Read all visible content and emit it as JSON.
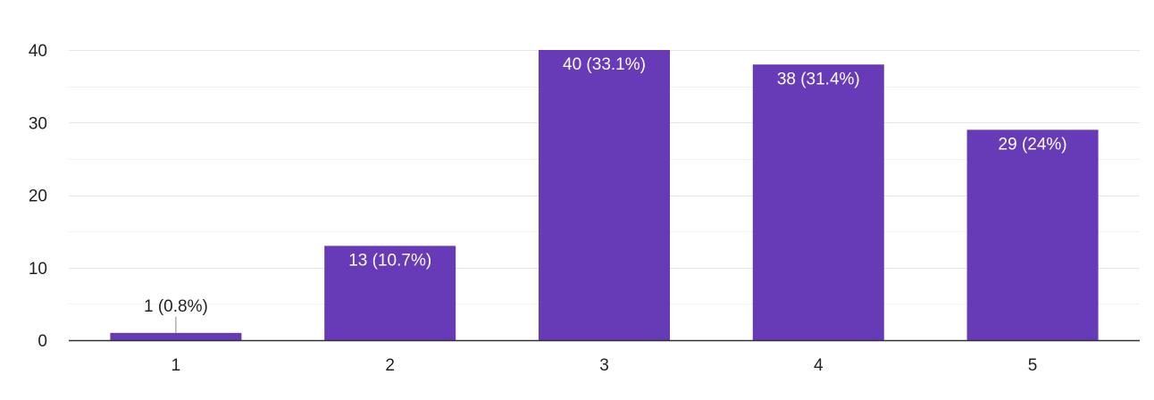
{
  "chart_data": {
    "type": "bar",
    "title": "",
    "xlabel": "",
    "ylabel": "",
    "categories": [
      "1",
      "2",
      "3",
      "4",
      "5"
    ],
    "values": [
      1,
      13,
      40,
      38,
      29
    ],
    "data_labels": [
      "1 (0.8%)",
      "13 (10.7%)",
      "40 (33.1%)",
      "38 (31.4%)",
      "29 (24%)"
    ],
    "ylim": [
      0,
      40
    ],
    "yticks": [
      "0",
      "10",
      "20",
      "30",
      "40"
    ],
    "grid": true,
    "bar_color": "#673ab7",
    "major_grid_color": "#e6e6e6",
    "minor_grid_color": "#f2f2f2",
    "baseline_color": "#333333"
  }
}
